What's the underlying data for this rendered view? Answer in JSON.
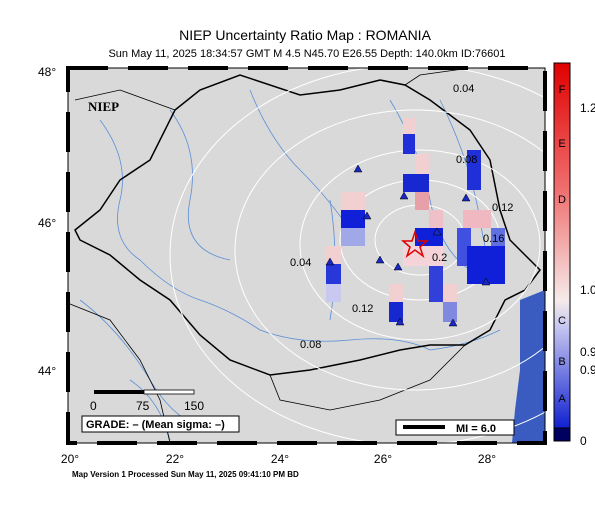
{
  "header": {
    "title": "NIEP Uncertainty Ratio Map : ROMANIA",
    "subtitle": "Sun May 11, 2025 18:34:57 GMT   M 4.5   N45.70 E26.55   Depth: 140.0km   ID:76601"
  },
  "axes": {
    "lat_labels": [
      "48°",
      "46°",
      "44°"
    ],
    "lon_labels": [
      "20°",
      "22°",
      "24°",
      "26°",
      "28°"
    ]
  },
  "watermark": "NIEP",
  "contour_labels": [
    "0.04",
    "0.08",
    "0.12",
    "0.16",
    "0.2",
    "0.04",
    "0.12",
    "0.08"
  ],
  "scale": {
    "labels": [
      "0",
      "75",
      "150"
    ]
  },
  "grade": "GRADE: – (Mean sigma: –)",
  "magnitude_legend": "MI = 6.0",
  "footer": "Map Version 1 Processed Sun May 11, 2025 09:41:10 PM BD",
  "colorbar": {
    "grades": [
      "F",
      "E",
      "D",
      "C",
      "B",
      "A"
    ],
    "values": [
      "1.2",
      "1.0",
      "0.9",
      "0.9",
      "0"
    ]
  }
}
